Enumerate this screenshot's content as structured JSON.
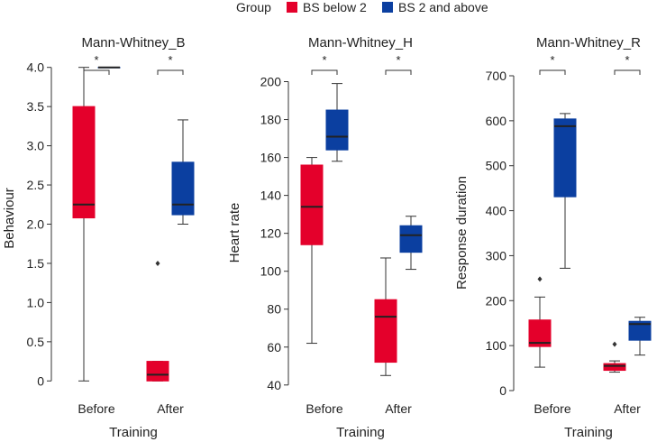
{
  "legend": {
    "title": "Group",
    "entries": [
      {
        "label": "BS below 2",
        "color": "#E4002B"
      },
      {
        "label": "BS 2 and above",
        "color": "#0B3FA0"
      }
    ]
  },
  "chart_data": [
    {
      "type": "box",
      "title": "Mann-Whitney_B",
      "xlabel": "Training",
      "ylabel": "Behaviour",
      "ylim": [
        -0.1,
        4.1
      ],
      "yticks": [
        0,
        0.5,
        1.0,
        1.5,
        2.0,
        2.5,
        3.0,
        3.5,
        4.0
      ],
      "ytick_labels": [
        "0",
        "0.5",
        "1.0",
        "1.5",
        "2.0",
        "2.5",
        "3.0",
        "3.5",
        "4.0"
      ],
      "categories": [
        "Before",
        "After"
      ],
      "significance": [
        "*",
        "*"
      ],
      "series": [
        {
          "name": "BS below 2",
          "color": "#E4002B",
          "boxes": [
            {
              "min": 0,
              "q1": 2.08,
              "median": 2.25,
              "q3": 3.5,
              "max": 4.0,
              "outliers": []
            },
            {
              "min": 0,
              "q1": 0,
              "median": 0.08,
              "q3": 0.25,
              "max": 0.25,
              "outliers": [
                1.5
              ]
            }
          ]
        },
        {
          "name": "BS 2 and above",
          "color": "#0B3FA0",
          "boxes": [
            {
              "min": 4.0,
              "q1": 4.0,
              "median": 4.0,
              "q3": 4.0,
              "max": 4.0,
              "outliers": []
            },
            {
              "min": 2.0,
              "q1": 2.12,
              "median": 2.25,
              "q3": 2.79,
              "max": 3.33,
              "outliers": []
            }
          ]
        }
      ]
    },
    {
      "type": "box",
      "title": "Mann-Whitney_H",
      "xlabel": "Training",
      "ylabel": "Heart rate",
      "ylim": [
        38,
        205
      ],
      "yticks": [
        40,
        60,
        80,
        100,
        120,
        140,
        160,
        180,
        200
      ],
      "ytick_labels": [
        "40",
        "60",
        "80",
        "100",
        "120",
        "140",
        "160",
        "180",
        "200"
      ],
      "categories": [
        "Before",
        "After"
      ],
      "significance": [
        "*",
        "*"
      ],
      "series": [
        {
          "name": "BS below 2",
          "color": "#E4002B",
          "boxes": [
            {
              "min": 62,
              "q1": 114,
              "median": 134,
              "q3": 156,
              "max": 160,
              "outliers": []
            },
            {
              "min": 45,
              "q1": 52,
              "median": 76,
              "q3": 85,
              "max": 107,
              "outliers": []
            }
          ]
        },
        {
          "name": "BS 2 and above",
          "color": "#0B3FA0",
          "boxes": [
            {
              "min": 158,
              "q1": 164,
              "median": 171,
              "q3": 185,
              "max": 199,
              "outliers": []
            },
            {
              "min": 101,
              "q1": 110,
              "median": 119,
              "q3": 124,
              "max": 129,
              "outliers": []
            }
          ]
        }
      ]
    },
    {
      "type": "box",
      "title": "Mann-Whitney_R",
      "xlabel": "Training",
      "ylabel": "Response duration",
      "ylim": [
        0,
        700
      ],
      "yticks": [
        0,
        100,
        200,
        300,
        400,
        500,
        600,
        700
      ],
      "ytick_labels": [
        "0",
        "100",
        "200",
        "300",
        "400",
        "500",
        "600",
        "700"
      ],
      "categories": [
        "Before",
        "After"
      ],
      "significance": [
        "*",
        "*"
      ],
      "series": [
        {
          "name": "BS below 2",
          "color": "#E4002B",
          "boxes": [
            {
              "min": 52,
              "q1": 98,
              "median": 106,
              "q3": 157,
              "max": 208,
              "outliers": [
                248
              ]
            },
            {
              "min": 41,
              "q1": 45,
              "median": 55,
              "q3": 60,
              "max": 66,
              "outliers": [
                103
              ]
            }
          ]
        },
        {
          "name": "BS 2 and above",
          "color": "#0B3FA0",
          "boxes": [
            {
              "min": 272,
              "q1": 431,
              "median": 588,
              "q3": 604,
              "max": 616,
              "outliers": []
            },
            {
              "min": 79,
              "q1": 112,
              "median": 148,
              "q3": 154,
              "max": 163,
              "outliers": []
            }
          ]
        }
      ]
    }
  ]
}
